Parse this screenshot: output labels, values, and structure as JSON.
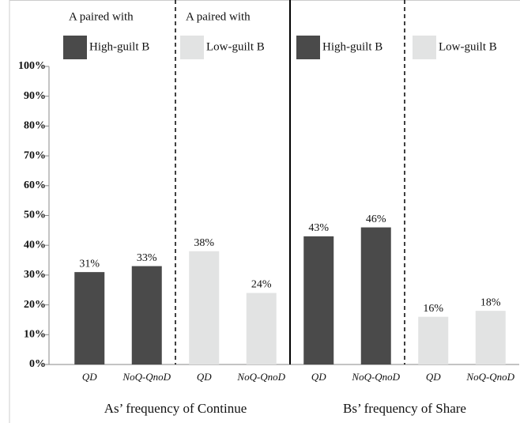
{
  "chart_data": {
    "type": "bar",
    "legend_header": "A paired with",
    "categories": [
      "QD",
      "NoQ-QnoD",
      "QD",
      "NoQ-QnoD",
      "QD",
      "NoQ-QnoD",
      "QD",
      "NoQ-QnoD"
    ],
    "groups": [
      "As’ frequency of Continue",
      "Bs’ frequency of Share"
    ],
    "series": [
      {
        "name": "High-guilt B",
        "color": "#4a4a4a",
        "values": [
          31,
          33,
          null,
          null,
          43,
          46,
          null,
          null
        ],
        "value_labels": [
          "31%",
          "33%",
          null,
          null,
          "43%",
          "46%",
          null,
          null
        ]
      },
      {
        "name": "Low-guilt B",
        "color": "#e2e3e3",
        "values": [
          null,
          null,
          38,
          24,
          null,
          null,
          16,
          18
        ],
        "value_labels": [
          null,
          null,
          "38%",
          "24%",
          null,
          null,
          "16%",
          "18%"
        ]
      }
    ],
    "ylim": [
      0,
      100
    ],
    "yticks": [
      {
        "value": 0,
        "label": "0%"
      },
      {
        "value": 10,
        "label": "10%"
      },
      {
        "value": 20,
        "label": "20%"
      },
      {
        "value": 30,
        "label": "30%"
      },
      {
        "value": 40,
        "label": "40%"
      },
      {
        "value": 50,
        "label": "50%"
      },
      {
        "value": 60,
        "label": "60%"
      },
      {
        "value": 70,
        "label": "70%"
      },
      {
        "value": 80,
        "label": "80%"
      },
      {
        "value": 90,
        "label": "90%"
      },
      {
        "value": 100,
        "label": "100%"
      }
    ]
  }
}
